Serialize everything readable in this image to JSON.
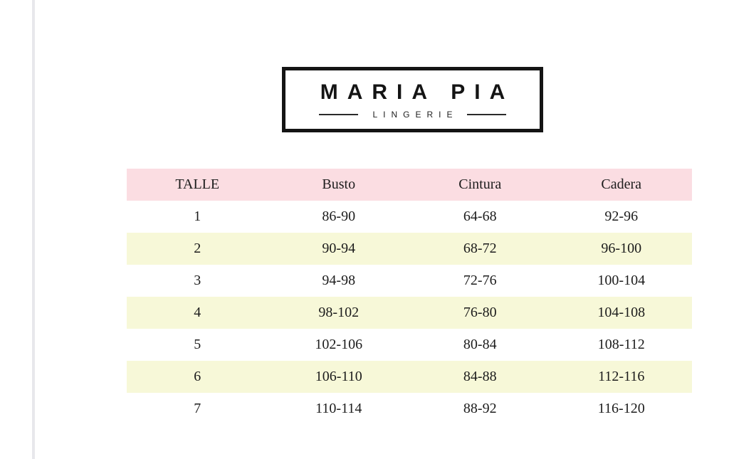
{
  "page": {
    "edge_line_color": "#e8e8ec",
    "background_color": "#ffffff"
  },
  "logo": {
    "brand": "MARIA PIA",
    "subtitle": "LINGERIE",
    "border_color": "#141414"
  },
  "table": {
    "header_bg_color": "#fbdde2",
    "stripe_bg_color": "#f7f8d8",
    "columns": [
      "TALLE",
      "Busto",
      "Cintura",
      "Cadera"
    ],
    "rows": [
      [
        "1",
        "86-90",
        "64-68",
        "92-96"
      ],
      [
        "2",
        "90-94",
        "68-72",
        "96-100"
      ],
      [
        "3",
        "94-98",
        "72-76",
        "100-104"
      ],
      [
        "4",
        "98-102",
        "76-80",
        "104-108"
      ],
      [
        "5",
        "102-106",
        "80-84",
        "108-112"
      ],
      [
        "6",
        "106-110",
        "84-88",
        "112-116"
      ],
      [
        "7",
        "110-114",
        "88-92",
        "116-120"
      ]
    ]
  }
}
